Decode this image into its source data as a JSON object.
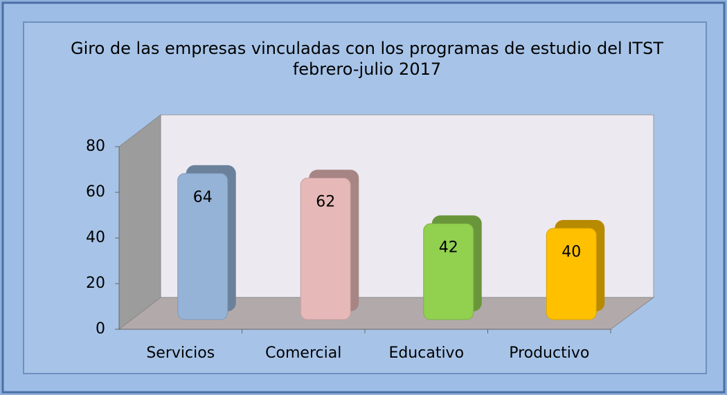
{
  "chart_data": {
    "type": "bar3d",
    "title": "Giro de las empresas vinculadas con los programas de estudio  del ITST",
    "subtitle": "febrero-julio 2017",
    "categories": [
      "Servicios",
      "Comercial",
      "Educativo",
      "Productivo"
    ],
    "values": [
      64,
      62,
      42,
      40
    ],
    "colors": [
      "#95b3d7",
      "#e6b9b8",
      "#92d050",
      "#ffc000"
    ],
    "ylim": [
      0,
      80
    ],
    "yticks": [
      0,
      20,
      40,
      60,
      80
    ],
    "grid": false
  }
}
